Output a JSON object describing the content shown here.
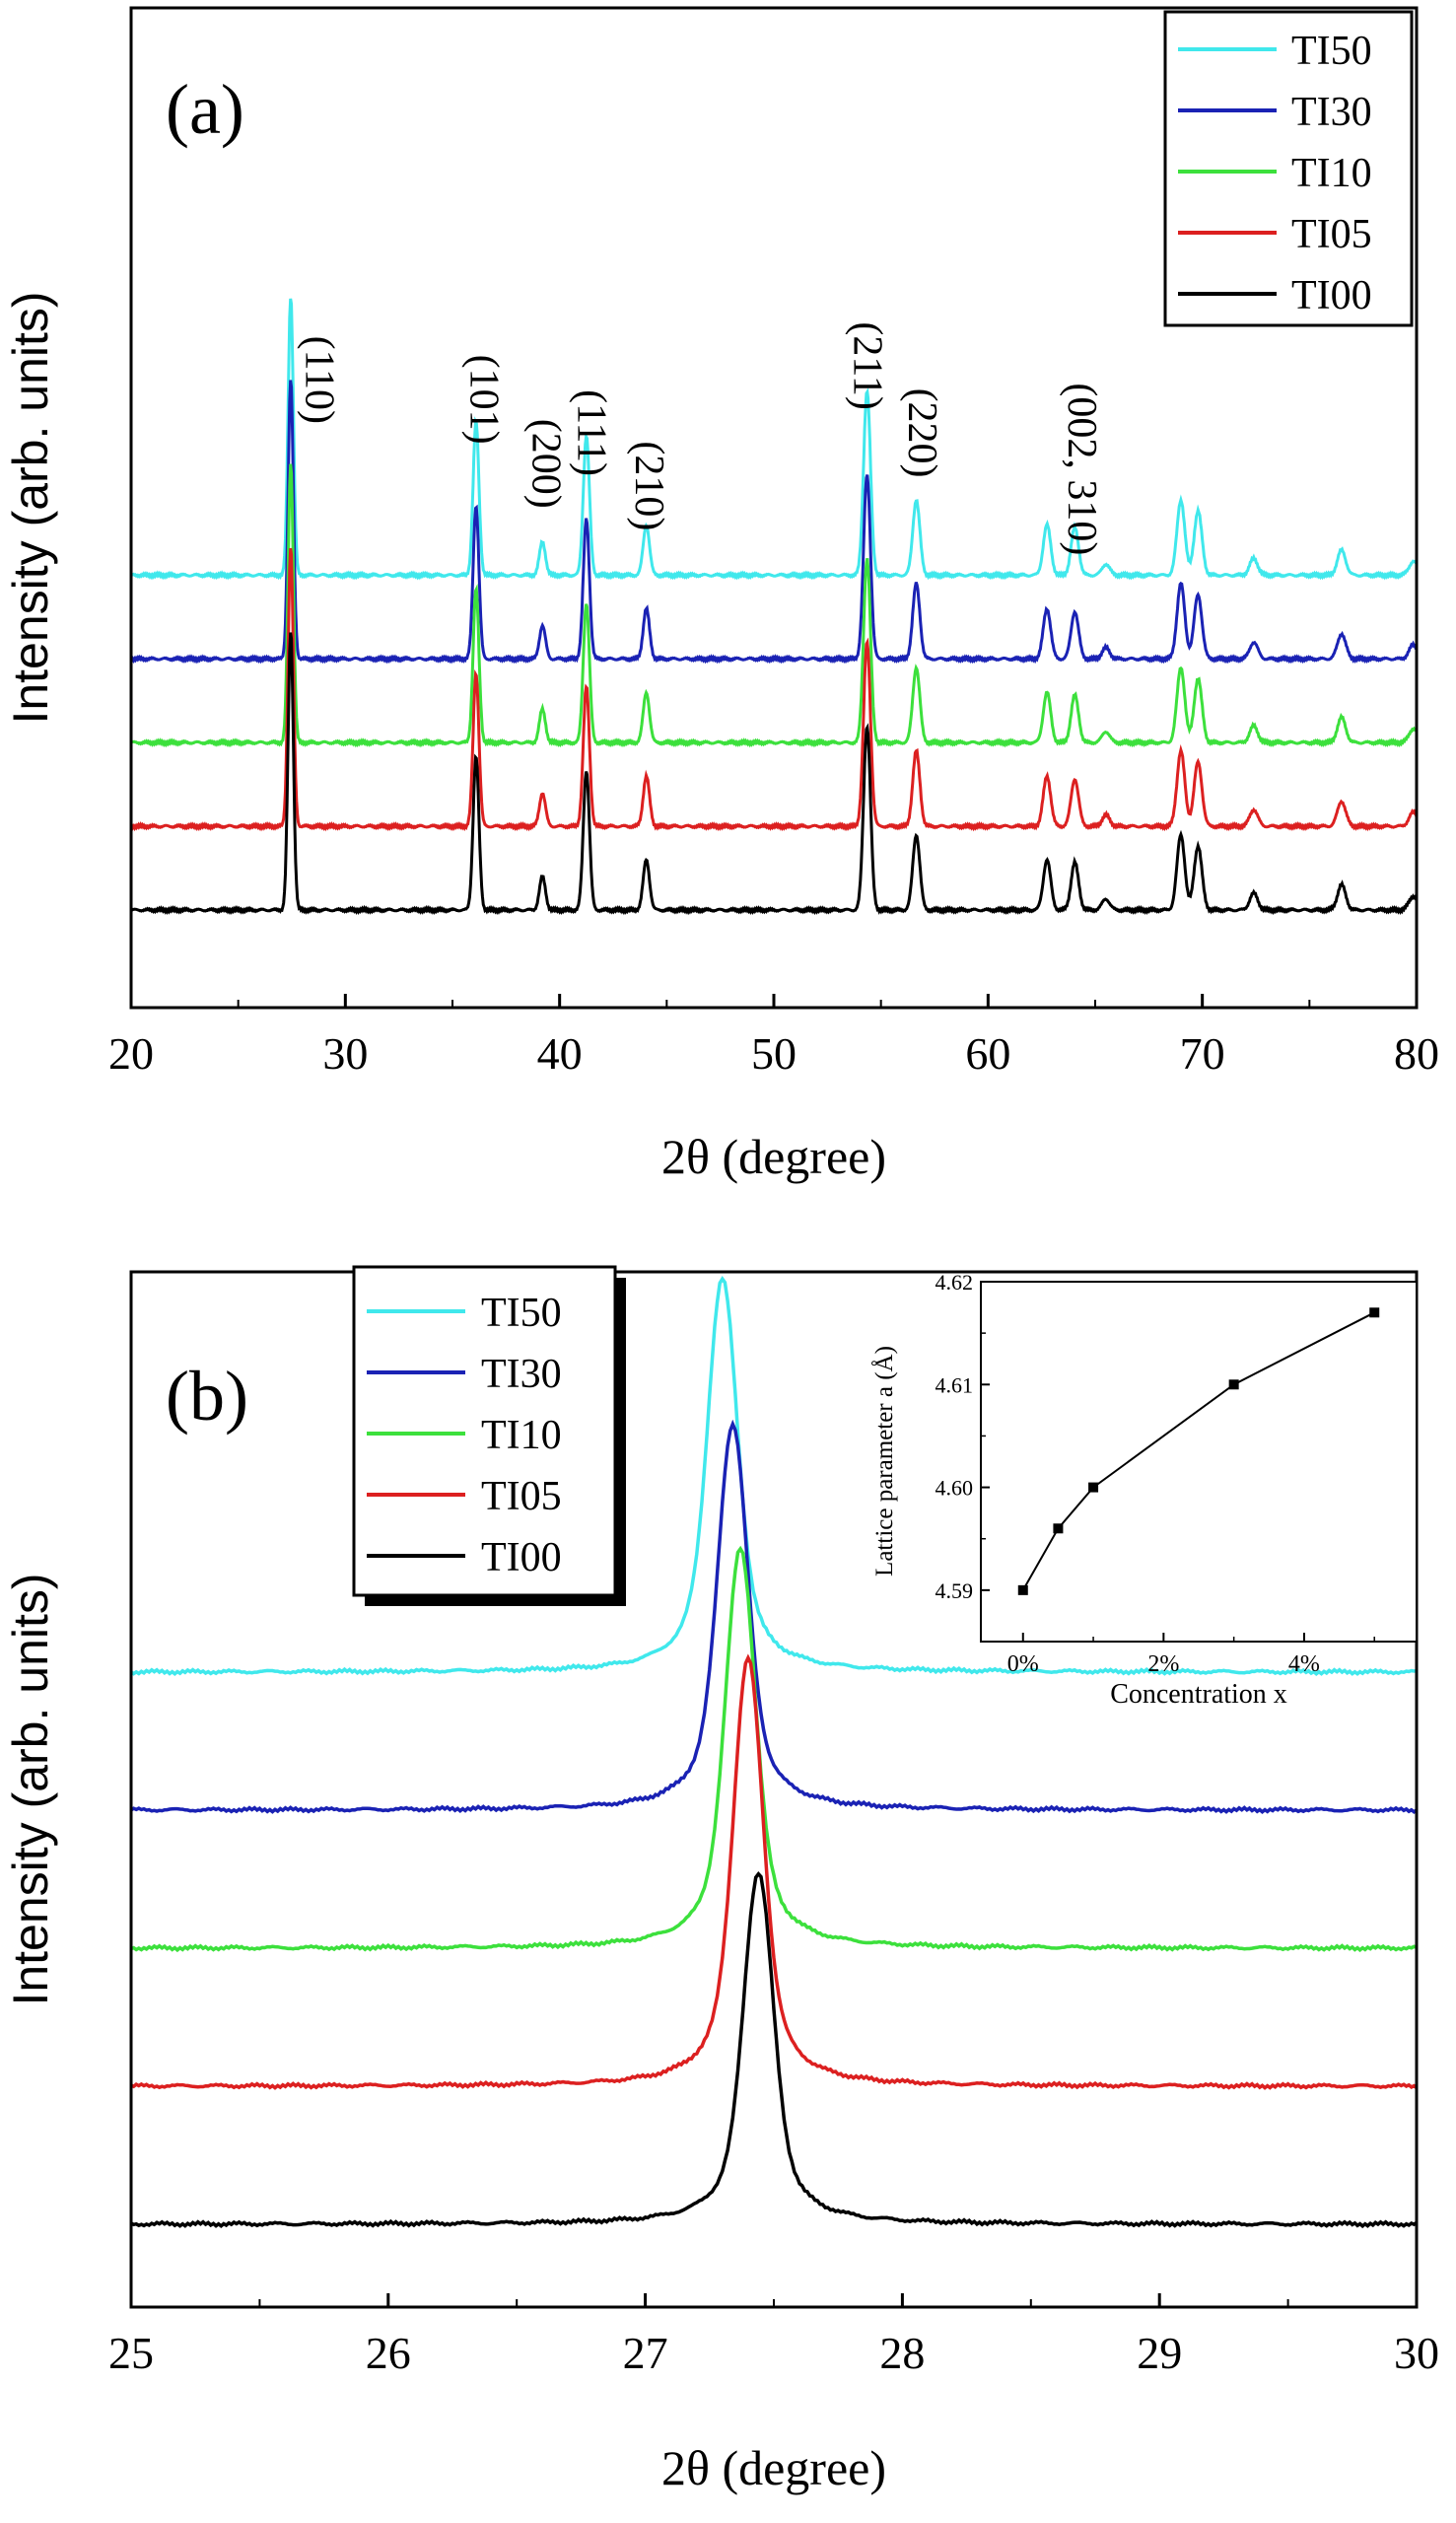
{
  "chart_data": [
    {
      "type": "line",
      "panel_label": "(a)",
      "xlabel": "2θ (degree)",
      "ylabel": "Intensity (arb. units)",
      "xlim": [
        20,
        80
      ],
      "x_ticks": [
        20,
        30,
        40,
        50,
        60,
        70,
        80
      ],
      "x_tick_labels": [
        "20",
        "30",
        "40",
        "50",
        "60",
        "70",
        "80"
      ],
      "legend_position": "top-right",
      "peaks": [
        {
          "pos": 27.45,
          "h": 1.0
        },
        {
          "pos": 36.1,
          "h": 0.55
        },
        {
          "pos": 39.2,
          "h": 0.12
        },
        {
          "pos": 41.25,
          "h": 0.5
        },
        {
          "pos": 44.05,
          "h": 0.18
        },
        {
          "pos": 54.35,
          "h": 0.66
        },
        {
          "pos": 56.65,
          "h": 0.27
        },
        {
          "pos": 62.75,
          "h": 0.18
        },
        {
          "pos": 64.05,
          "h": 0.17
        },
        {
          "pos": 65.5,
          "h": 0.04
        },
        {
          "pos": 69.0,
          "h": 0.27
        },
        {
          "pos": 69.8,
          "h": 0.23
        },
        {
          "pos": 72.4,
          "h": 0.06
        },
        {
          "pos": 76.5,
          "h": 0.09
        },
        {
          "pos": 79.85,
          "h": 0.05
        }
      ],
      "series": [
        {
          "name": "TI50",
          "color": "#40e8ec",
          "offset": 1.2
        },
        {
          "name": "TI30",
          "color": "#1a22b4",
          "offset": 0.9
        },
        {
          "name": "TI10",
          "color": "#3ce03c",
          "offset": 0.6
        },
        {
          "name": "TI05",
          "color": "#dc2020",
          "offset": 0.3
        },
        {
          "name": "TI00",
          "color": "#000000",
          "offset": 0.0
        }
      ],
      "peak_annotations": [
        {
          "text": "(110)",
          "x": 28.6,
          "y": 1.9
        },
        {
          "text": "(101)",
          "x": 36.3,
          "y": 1.83
        },
        {
          "text": "(200)",
          "x": 39.2,
          "y": 1.6
        },
        {
          "text": "(111)",
          "x": 41.3,
          "y": 1.71
        },
        {
          "text": "(210)",
          "x": 44.0,
          "y": 1.52
        },
        {
          "text": "(211)",
          "x": 54.2,
          "y": 1.95
        },
        {
          "text": "(220)",
          "x": 56.75,
          "y": 1.71
        },
        {
          "text": "(002, 310)",
          "x": 64.2,
          "y": 1.58
        }
      ]
    },
    {
      "type": "line",
      "panel_label": "(b)",
      "xlabel": "2θ (degree)",
      "ylabel": "Intensity (arb. units)",
      "xlim": [
        25,
        30
      ],
      "x_ticks": [
        25,
        26,
        27,
        28,
        29,
        30
      ],
      "x_tick_labels": [
        "25",
        "26",
        "27",
        "28",
        "29",
        "30"
      ],
      "legend_position": "top-left",
      "series": [
        {
          "name": "TI50",
          "color": "#40e8ec",
          "peak_x": 27.3,
          "baseline": 0.8,
          "peak_height": 0.57
        },
        {
          "name": "TI30",
          "color": "#1a22b4",
          "peak_x": 27.34,
          "baseline": 0.6,
          "peak_height": 0.56
        },
        {
          "name": "TI10",
          "color": "#3ce03c",
          "peak_x": 27.37,
          "baseline": 0.4,
          "peak_height": 0.58
        },
        {
          "name": "TI05",
          "color": "#dc2020",
          "peak_x": 27.4,
          "baseline": 0.2,
          "peak_height": 0.62
        },
        {
          "name": "TI00",
          "color": "#000000",
          "peak_x": 27.44,
          "baseline": 0.0,
          "peak_height": 0.51
        }
      ],
      "inset": {
        "type": "line",
        "xlabel": "Concentration x",
        "ylabel": "Lattice parameter a (Å)",
        "xlim": [
          -0.6,
          5.6
        ],
        "ylim": [
          4.585,
          4.62
        ],
        "x_ticks": [
          0,
          2,
          4
        ],
        "x_tick_labels": [
          "0%",
          "2%",
          "4%"
        ],
        "y_ticks": [
          4.59,
          4.6,
          4.61,
          4.62
        ],
        "y_tick_labels": [
          "4.59",
          "4.60",
          "4.61",
          "4.62"
        ],
        "x": [
          0,
          0.5,
          1,
          3,
          5
        ],
        "y": [
          4.59,
          4.596,
          4.6,
          4.61,
          4.617
        ]
      }
    }
  ]
}
